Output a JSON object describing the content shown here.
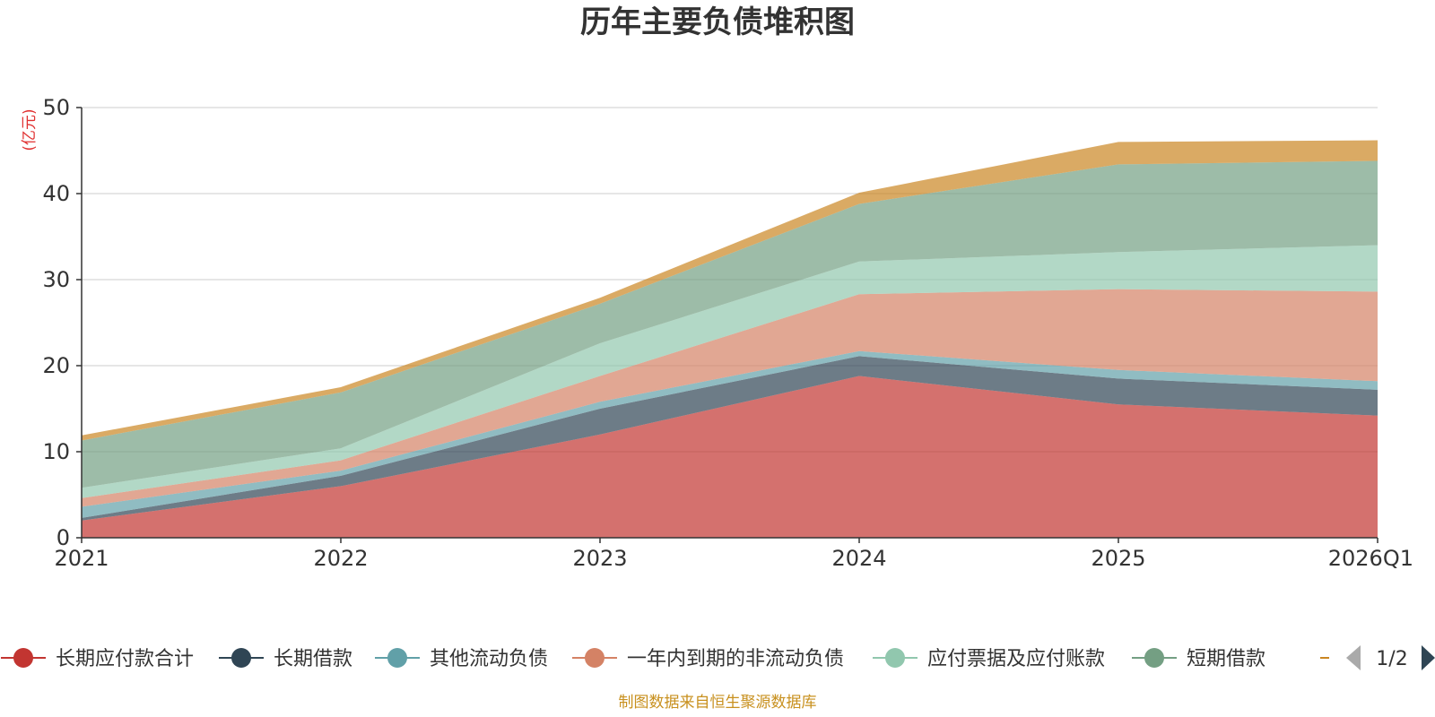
{
  "chart_data": {
    "type": "area",
    "title": "历年主要负债堆积图",
    "ylabel": "(亿元)",
    "xlabel": "",
    "ylim": [
      0,
      50
    ],
    "yticks": [
      0,
      10,
      20,
      30,
      40,
      50
    ],
    "categories": [
      "2021",
      "2022",
      "2023",
      "2024",
      "2025",
      "2026Q1"
    ],
    "stacked": true,
    "grid": true,
    "series": [
      {
        "name": "长期应付款合计",
        "color": "#c23531",
        "values": [
          2.0,
          6.0,
          12.0,
          18.8,
          15.5,
          14.2
        ]
      },
      {
        "name": "长期借款",
        "color": "#2f4554",
        "values": [
          0.3,
          1.2,
          3.0,
          2.3,
          3.0,
          3.0
        ]
      },
      {
        "name": "其他流动负债",
        "color": "#61a0a8",
        "values": [
          1.3,
          0.6,
          0.8,
          0.6,
          1.0,
          1.0
        ]
      },
      {
        "name": "一年内到期的非流动负债",
        "color": "#d48265",
        "values": [
          1.0,
          1.2,
          3.0,
          6.6,
          9.4,
          10.4
        ]
      },
      {
        "name": "应付票据及应付账款",
        "color": "#91c7ae",
        "values": [
          1.2,
          1.4,
          3.8,
          3.8,
          4.3,
          5.4
        ]
      },
      {
        "name": "短期借款",
        "color": "#749f83",
        "values": [
          5.5,
          6.5,
          4.6,
          6.7,
          10.2,
          9.8
        ]
      },
      {
        "name": "",
        "color": "#ca8622",
        "values": [
          0.6,
          0.6,
          0.7,
          1.3,
          2.6,
          2.4
        ]
      }
    ],
    "legend_page": "1/2",
    "legend_position": "bottom"
  },
  "footer": {
    "source": "制图数据来自恒生聚源数据库"
  },
  "colors": {
    "axis": "#333333",
    "grid": "#cccccc",
    "unit": "#e03030",
    "source": "#c8901e",
    "pager_active": "#2f4554",
    "pager_inactive": "#aaaaaa"
  }
}
